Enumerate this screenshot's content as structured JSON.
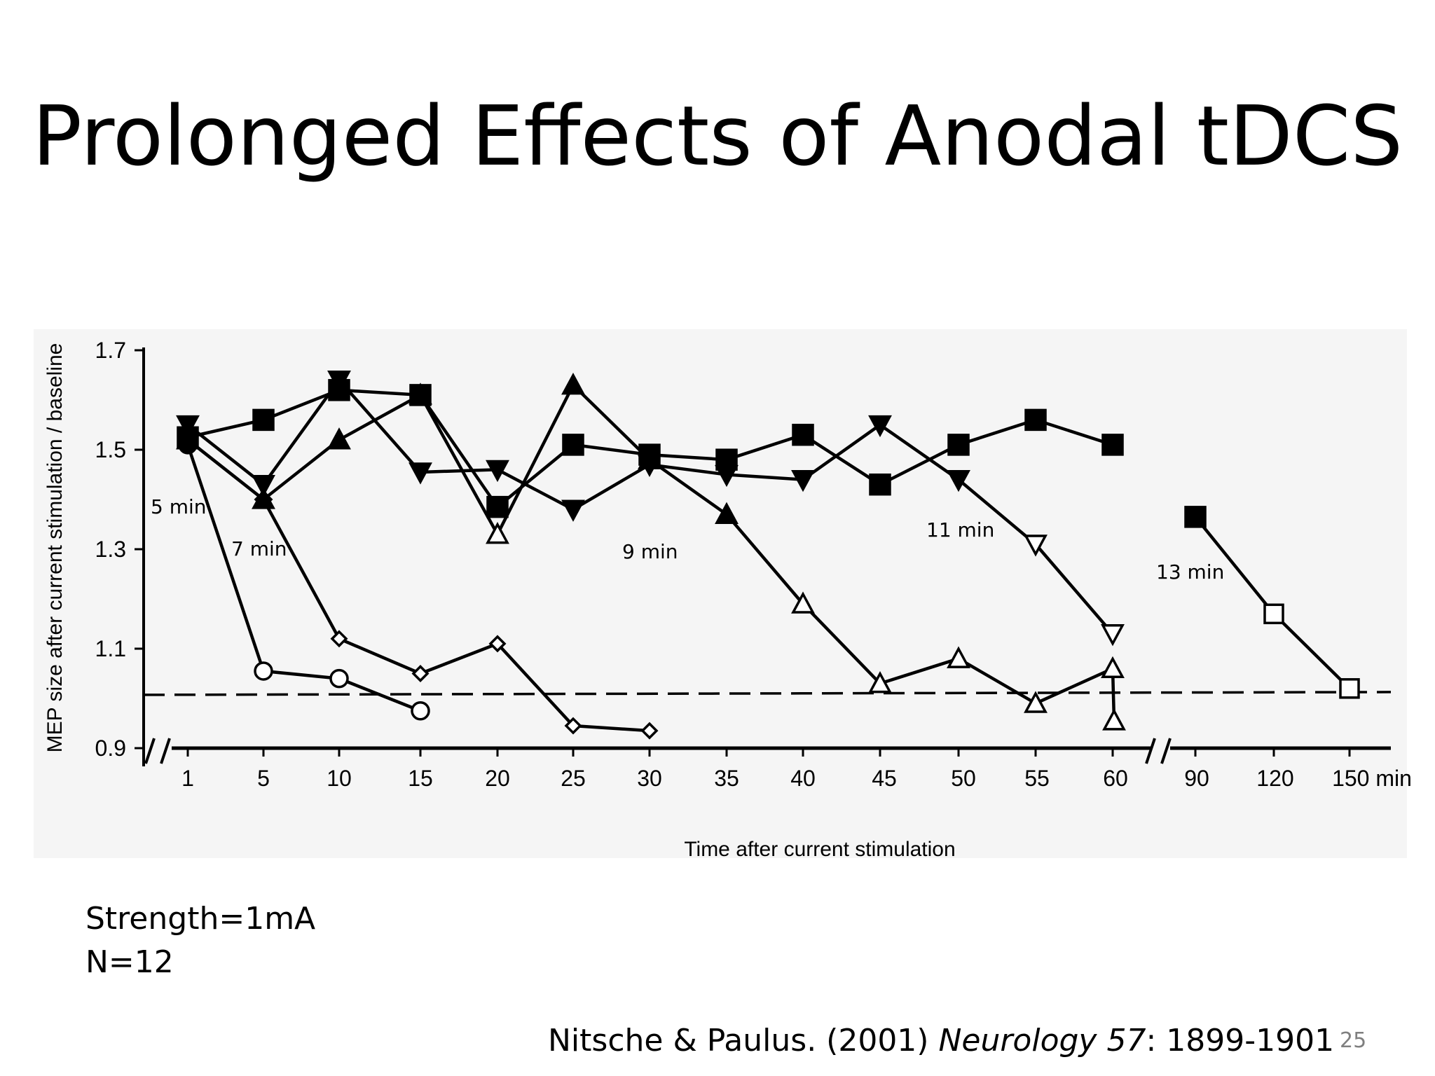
{
  "slide": {
    "title": "Prolonged Effects of Anodal tDCS",
    "strength": "Strength=1mA",
    "n": "N=12",
    "citation": {
      "authors": "Nitsche & Paulus. (2001) ",
      "journal": "Neurology 57",
      "pages": ": 1899-1901"
    },
    "page_number": "25"
  },
  "chart_data": {
    "type": "line",
    "ylabel": "MEP size after current stimulation / baseline",
    "xlabel": "Time after current stimulation",
    "ylim": [
      0.9,
      1.7
    ],
    "y_ticks": [
      "0.9",
      "1.1",
      "1.3",
      "1.5",
      "1.7"
    ],
    "categories": [
      "1",
      "5",
      "10",
      "15",
      "20",
      "25",
      "30",
      "35",
      "40",
      "45",
      "50",
      "55",
      "60",
      "90",
      "120",
      "150 min"
    ],
    "axis_breaks": [
      "before 1",
      "between 60 and 90"
    ],
    "baseline_dashed": 1.01,
    "grid": false,
    "series": [
      {
        "name": "5 min",
        "marker": "circle",
        "points": [
          {
            "x": "1",
            "y": 1.51,
            "filled": true
          },
          {
            "x": "5",
            "y": 1.055
          },
          {
            "x": "10",
            "y": 1.04
          },
          {
            "x": "15",
            "y": 0.975
          }
        ]
      },
      {
        "name": "7 min",
        "marker": "diamond",
        "points": [
          {
            "x": "1",
            "y": 1.52,
            "filled": true
          },
          {
            "x": "5",
            "y": 1.4,
            "filled": true
          },
          {
            "x": "10",
            "y": 1.12
          },
          {
            "x": "15",
            "y": 1.05
          },
          {
            "x": "20",
            "y": 1.11
          },
          {
            "x": "25",
            "y": 0.945
          },
          {
            "x": "30",
            "y": 0.935
          }
        ]
      },
      {
        "name": "9 min",
        "marker": "triangle-up",
        "points": [
          {
            "x": "1",
            "y": 1.52,
            "filled": true
          },
          {
            "x": "5",
            "y": 1.4,
            "filled": true
          },
          {
            "x": "10",
            "y": 1.52,
            "filled": true
          },
          {
            "x": "15",
            "y": 1.61,
            "filled": true
          },
          {
            "x": "20",
            "y": 1.33
          },
          {
            "x": "25",
            "y": 1.63,
            "filled": true
          },
          {
            "x": "30",
            "y": 1.48,
            "filled": true
          },
          {
            "x": "35",
            "y": 1.37,
            "filled": true
          },
          {
            "x": "40",
            "y": 1.19
          },
          {
            "x": "45",
            "y": 1.03
          },
          {
            "x": "50",
            "y": 1.08
          },
          {
            "x": "55",
            "y": 0.99
          },
          {
            "x": "60",
            "y": 1.06
          },
          {
            "x": "60b",
            "y": 0.955
          }
        ]
      },
      {
        "name": "11 min",
        "marker": "triangle-down",
        "points": [
          {
            "x": "1",
            "y": 1.55,
            "filled": true
          },
          {
            "x": "5",
            "y": 1.43,
            "filled": true
          },
          {
            "x": "10",
            "y": 1.64,
            "filled": true
          },
          {
            "x": "15",
            "y": 1.455,
            "filled": true
          },
          {
            "x": "20",
            "y": 1.46,
            "filled": true
          },
          {
            "x": "25",
            "y": 1.38,
            "filled": true
          },
          {
            "x": "30",
            "y": 1.47,
            "filled": true
          },
          {
            "x": "35",
            "y": 1.45,
            "filled": true
          },
          {
            "x": "40",
            "y": 1.44,
            "filled": true
          },
          {
            "x": "45",
            "y": 1.55,
            "filled": true
          },
          {
            "x": "50",
            "y": 1.44,
            "filled": true
          },
          {
            "x": "55",
            "y": 1.31
          },
          {
            "x": "60",
            "y": 1.13
          }
        ]
      },
      {
        "name": "13 min",
        "marker": "square",
        "points": [
          {
            "x": "1",
            "y": 1.525,
            "filled": true
          },
          {
            "x": "5",
            "y": 1.56,
            "filled": true
          },
          {
            "x": "10",
            "y": 1.62,
            "filled": true
          },
          {
            "x": "15",
            "y": 1.61,
            "filled": true
          },
          {
            "x": "20",
            "y": 1.385,
            "filled": true
          },
          {
            "x": "25",
            "y": 1.51,
            "filled": true
          },
          {
            "x": "30",
            "y": 1.49,
            "filled": true
          },
          {
            "x": "35",
            "y": 1.48,
            "filled": true
          },
          {
            "x": "40",
            "y": 1.53,
            "filled": true
          },
          {
            "x": "45",
            "y": 1.43,
            "filled": true
          },
          {
            "x": "50",
            "y": 1.51,
            "filled": true
          },
          {
            "x": "55",
            "y": 1.56,
            "filled": true
          },
          {
            "x": "60",
            "y": 1.51,
            "filled": true
          },
          {
            "x": "90",
            "y": 1.365,
            "filled": true
          },
          {
            "x": "120",
            "y": 1.17
          },
          {
            "x": "150 min",
            "y": 1.02
          }
        ]
      }
    ]
  }
}
